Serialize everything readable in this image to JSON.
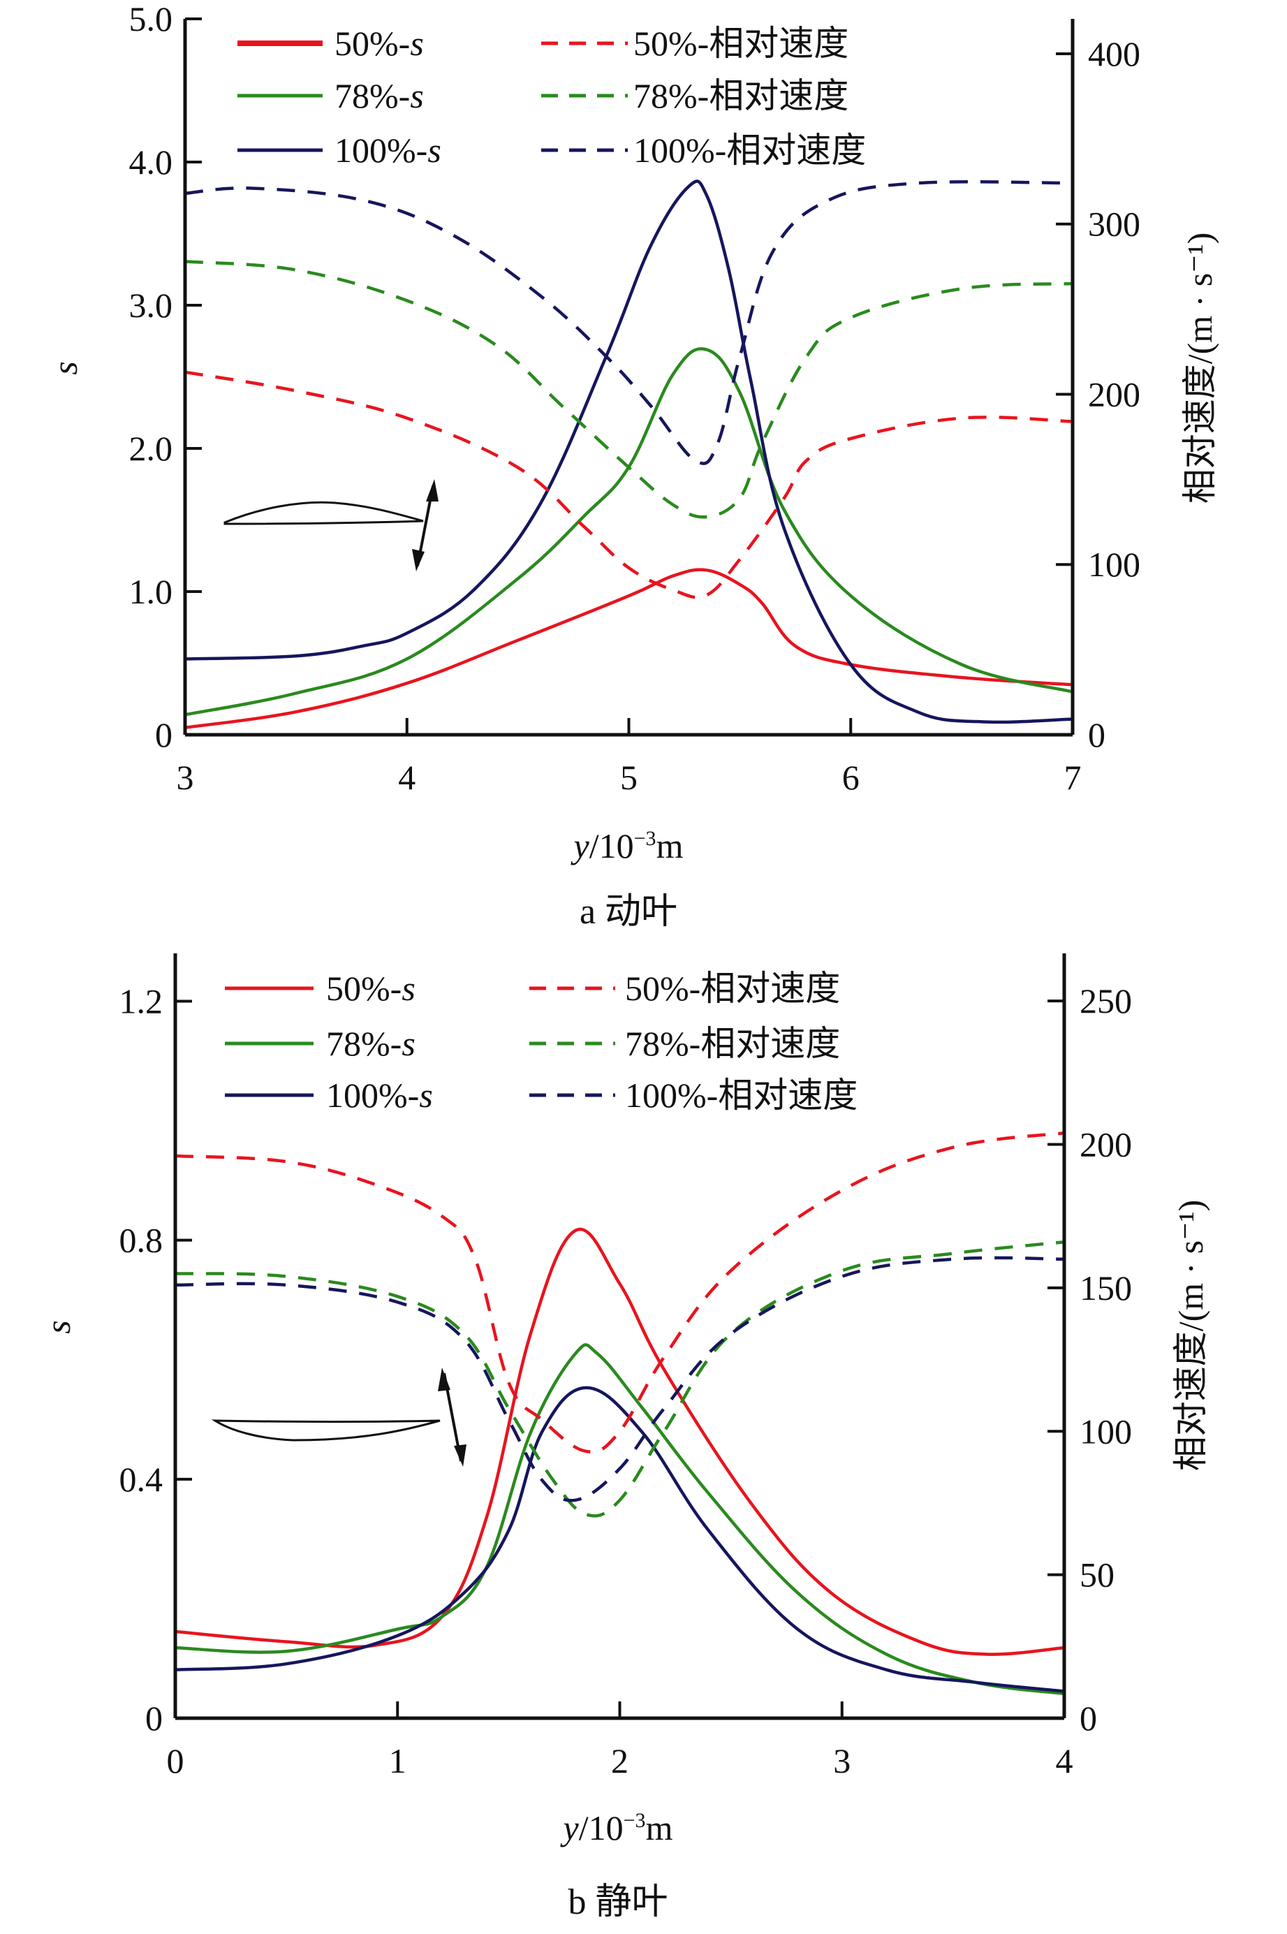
{
  "colors": {
    "p50": "#e8141e",
    "p78": "#2a8a1e",
    "p100": "#16165e",
    "axis": "#111111"
  },
  "chart_data": [
    {
      "id": "a",
      "type": "line",
      "caption": "a  动叶",
      "title": "",
      "xlabel": "y/10⁻³m",
      "ylabel": "s",
      "y2label": "相对速度/(m · s⁻¹)",
      "xlim": [
        3,
        7
      ],
      "ylim": [
        0,
        5.0
      ],
      "y2lim": [
        0,
        420.5
      ],
      "xticks": [
        3,
        4,
        5,
        6,
        7
      ],
      "xtick_labels": [
        "3",
        "4",
        "5",
        "6",
        "7"
      ],
      "yticks": [
        0,
        1,
        2,
        3,
        4,
        5
      ],
      "ytick_labels": [
        "0",
        "1.0",
        "2.0",
        "3.0",
        "4.0",
        "5.0"
      ],
      "y2ticks": [
        0,
        100,
        200,
        300,
        400
      ],
      "y2tick_labels": [
        "0",
        "100",
        "200",
        "300",
        "400"
      ],
      "grid": false,
      "legend_position": "top",
      "series": [
        {
          "name": "50%-s",
          "axis": "left",
          "style": "solid",
          "color_key": "p50",
          "x": [
            3,
            3.5,
            4,
            4.5,
            5,
            5.2,
            5.35,
            5.5,
            5.6,
            5.75,
            6,
            6.5,
            7
          ],
          "y": [
            0.05,
            0.16,
            0.36,
            0.66,
            0.97,
            1.11,
            1.15,
            1.05,
            0.92,
            0.62,
            0.49,
            0.4,
            0.35
          ]
        },
        {
          "name": "78%-s",
          "axis": "left",
          "style": "solid",
          "color_key": "p78",
          "x": [
            3,
            3.5,
            4,
            4.5,
            4.8,
            5,
            5.2,
            5.35,
            5.5,
            5.7,
            6,
            6.5,
            7
          ],
          "y": [
            0.14,
            0.29,
            0.53,
            1.09,
            1.53,
            1.87,
            2.52,
            2.69,
            2.39,
            1.57,
            0.97,
            0.49,
            0.3
          ]
        },
        {
          "name": "100%-s",
          "axis": "left",
          "style": "solid",
          "color_key": "p100",
          "x": [
            3,
            3.5,
            3.8,
            4,
            4.3,
            4.6,
            4.9,
            5.1,
            5.27,
            5.35,
            5.45,
            5.55,
            5.7,
            6,
            6.3,
            6.6,
            7
          ],
          "y": [
            0.53,
            0.55,
            0.62,
            0.71,
            1.01,
            1.61,
            2.65,
            3.42,
            3.83,
            3.77,
            3.25,
            2.47,
            1.44,
            0.49,
            0.16,
            0.09,
            0.11
          ]
        },
        {
          "name": "50%-相对速度",
          "axis": "right",
          "style": "dashed",
          "color_key": "p50",
          "x": [
            3,
            3.5,
            4,
            4.5,
            4.8,
            5,
            5.2,
            5.35,
            5.5,
            5.7,
            5.8,
            6,
            6.5,
            7
          ],
          "y": [
            213,
            202,
            186,
            157,
            122,
            98,
            85,
            82,
            103,
            139,
            161,
            174,
            186,
            184
          ]
        },
        {
          "name": "78%-相对速度",
          "axis": "right",
          "style": "dashed",
          "color_key": "p78",
          "x": [
            3,
            3.5,
            4,
            4.4,
            4.7,
            5,
            5.2,
            5.35,
            5.5,
            5.6,
            5.8,
            6,
            6.5,
            7
          ],
          "y": [
            278,
            273,
            255,
            229,
            193,
            157,
            135,
            128,
            139,
            171,
            222,
            245,
            262,
            265
          ]
        },
        {
          "name": "100%-相对速度",
          "axis": "right",
          "style": "dashed",
          "color_key": "p100",
          "x": [
            3,
            3.3,
            3.8,
            4.2,
            4.6,
            4.9,
            5.1,
            5.3,
            5.4,
            5.5,
            5.65,
            5.9,
            6.3,
            7
          ],
          "y": [
            318,
            321,
            314,
            294,
            258,
            222,
            193,
            161,
            171,
            222,
            284,
            314,
            324,
            324
          ]
        }
      ]
    },
    {
      "id": "b",
      "type": "line",
      "caption": "b  静叶",
      "title": "",
      "xlabel": "y/10⁻³m",
      "ylabel": "s",
      "y2label": "相对速度/(m · s⁻¹)",
      "xlim": [
        0,
        4
      ],
      "ylim": [
        0,
        1.28
      ],
      "y2lim": [
        0,
        266.6
      ],
      "xticks": [
        0,
        1,
        2,
        3,
        4
      ],
      "xtick_labels": [
        "0",
        "1",
        "2",
        "3",
        "4"
      ],
      "yticks": [
        0,
        0.4,
        0.8,
        1.2
      ],
      "ytick_labels": [
        "0",
        "0.4",
        "0.8",
        "1.2"
      ],
      "y2ticks": [
        0,
        50,
        100,
        150,
        200,
        250
      ],
      "y2tick_labels": [
        "0",
        "50",
        "100",
        "150",
        "200",
        "250"
      ],
      "grid": false,
      "legend_position": "top",
      "series": [
        {
          "name": "50%-s",
          "axis": "left",
          "style": "solid",
          "color_key": "p50",
          "x": [
            0,
            0.5,
            0.9,
            1.2,
            1.4,
            1.6,
            1.8,
            2,
            2.2,
            2.6,
            2.95,
            3.35,
            3.65,
            4
          ],
          "y": [
            0.145,
            0.128,
            0.122,
            0.17,
            0.335,
            0.645,
            0.816,
            0.727,
            0.583,
            0.355,
            0.21,
            0.128,
            0.107,
            0.118
          ]
        },
        {
          "name": "78%-s",
          "axis": "left",
          "style": "solid",
          "color_key": "p78",
          "x": [
            0,
            0.5,
            1,
            1.2,
            1.4,
            1.6,
            1.8,
            1.9,
            2.1,
            2.4,
            2.8,
            3.2,
            3.6,
            4
          ],
          "y": [
            0.118,
            0.112,
            0.149,
            0.17,
            0.252,
            0.479,
            0.61,
            0.61,
            0.52,
            0.376,
            0.21,
            0.107,
            0.06,
            0.041
          ]
        },
        {
          "name": "100%-s",
          "axis": "left",
          "style": "solid",
          "color_key": "p100",
          "x": [
            0,
            0.5,
            1,
            1.3,
            1.5,
            1.65,
            1.85,
            2.1,
            2.4,
            2.8,
            3.2,
            3.6,
            4
          ],
          "y": [
            0.081,
            0.091,
            0.138,
            0.21,
            0.314,
            0.479,
            0.553,
            0.479,
            0.314,
            0.149,
            0.081,
            0.06,
            0.045
          ]
        },
        {
          "name": "50%-相对速度",
          "axis": "right",
          "style": "dashed",
          "color_key": "p50",
          "x": [
            0,
            0.5,
            0.9,
            1.2,
            1.35,
            1.5,
            1.65,
            1.85,
            2,
            2.2,
            2.5,
            3,
            3.5,
            4
          ],
          "y": [
            196,
            194,
            186,
            175,
            160,
            117,
            104,
            93,
            100,
            126,
            156,
            184,
            199,
            204
          ]
        },
        {
          "name": "78%-相对速度",
          "axis": "right",
          "style": "dashed",
          "color_key": "p78",
          "x": [
            0,
            0.5,
            1,
            1.3,
            1.5,
            1.7,
            1.85,
            2,
            2.2,
            2.5,
            3,
            3.5,
            4
          ],
          "y": [
            155,
            154,
            147,
            134,
            108,
            83,
            71,
            76,
            100,
            134,
            156,
            162,
            166
          ]
        },
        {
          "name": "100%-相对速度",
          "axis": "right",
          "style": "dashed",
          "color_key": "p100",
          "x": [
            0,
            0.5,
            1,
            1.3,
            1.5,
            1.65,
            1.8,
            2,
            2.2,
            2.5,
            3,
            3.5,
            4
          ],
          "y": [
            151,
            151,
            145,
            132,
            104,
            83,
            76,
            87,
            108,
            134,
            154,
            160,
            160
          ]
        }
      ]
    }
  ],
  "legend": {
    "col1": [
      "50%-",
      "78%-",
      "100%-"
    ],
    "col1_suffix": "s",
    "col2": [
      "50%-相对速度",
      "78%-相对速度",
      "100%-相对速度"
    ]
  },
  "insets": {
    "a": "airfoil-with-double-arrow",
    "b": "airfoil-with-double-arrow"
  }
}
